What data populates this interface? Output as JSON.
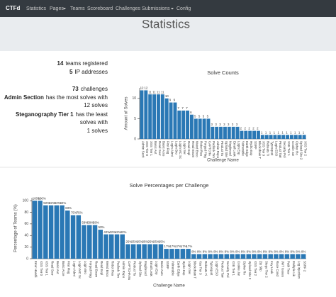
{
  "navbar": {
    "brand": "CTFd",
    "items": [
      "Statistics",
      "Pages",
      "Teams",
      "Scoreboard",
      "Challenges",
      "Submissions",
      "Config"
    ]
  },
  "header": {
    "title": "Statistics"
  },
  "stats": {
    "teams": {
      "count": "14",
      "text": "teams registered"
    },
    "ips": {
      "count": "5",
      "text": "IP addresses"
    },
    "challenges": {
      "count": "73",
      "text": "challenges"
    },
    "most": {
      "name": "Admin Section",
      "text": "has the most solves with",
      "solves": "12 solves"
    },
    "least": {
      "name": "Steganography Tier 1",
      "text": "has the least",
      "text2": "solves with",
      "solves": "1 solves"
    }
  },
  "chart_data": [
    {
      "type": "bar",
      "title": "Solve Counts",
      "x_label": "Challenge Name",
      "y_label": "Amount of Solves",
      "color": "#2a78b5",
      "categories": [
        "Admin Secti",
        "XSS Tier 0",
        "XSS Tier 1",
        "Basic Aut",
        "Read Secr",
        "Basic Acce",
        "First Flag",
        "Login Admi",
        "Login Bro",
        "Login MC Sc",
        "Login Ser",
        "Read Expl",
        "Read Enum",
        "Weird Enco",
        "Robot Rea",
        "Forged Flag",
        "CAPTCHA",
        "Padlock Tim",
        "Admin Repo",
        "Product Ta",
        "Upload Site",
        "Magibrood",
        "Email Leak",
        "Login Exp",
        "Vulnerable",
        "Earth Edge",
        "Hydro Exp",
        "SSRF",
        "Blockchain T",
        "XSS Tier 3",
        "Rebeats Ti",
        "Typosquat",
        "Login ESO",
        "Product Tarr",
        "Security Pol",
        "XXE Tier 1",
        "Cookie Jar",
        "Cipher Ro",
        "Upload Site 2",
        "XSS Tier 2"
      ],
      "values": [
        12,
        12,
        11,
        11,
        11,
        11,
        10,
        9,
        9,
        7,
        7,
        7,
        6,
        5,
        5,
        5,
        5,
        3,
        3,
        3,
        3,
        3,
        3,
        3,
        2,
        2,
        2,
        2,
        2,
        1,
        1,
        1,
        1,
        1,
        1,
        1,
        1,
        1,
        1,
        1
      ],
      "ylim": [
        0,
        12.6
      ],
      "yticks": [
        0,
        5,
        10
      ]
    },
    {
      "type": "bar",
      "title": "Solve Percentages per Challenge",
      "x_label": "Challenge Name",
      "y_label": "Percentage of Teams (%)",
      "color": "#2a78b5",
      "categories": [
        "Error Handli",
        "XSS Tier 0",
        "XSS Tier 1",
        "Read Secr",
        "Basic Aut",
        "Basic Acce",
        "First Flag",
        "Login Admi",
        "Login MC Sc",
        "Login Bro",
        "Forged Flag",
        "Read Enum",
        "Read Expl",
        "Weird Enco",
        "Robot Rea",
        "Padlock Tim",
        "Admin Repo",
        "CAPTCHA Bu",
        "Product Ta",
        "Upload Site",
        "Magibrood",
        "Email Leak",
        "Login Exp",
        "Basic Auto",
        "SSRF",
        "Vulnerable",
        "Earth Edge",
        "Hydro Exp",
        "Login Ser",
        "Blockchain T",
        "Xss Tier 3",
        "Rebeats Ti",
        "Typosquat",
        "Login ESO",
        "Product Tarr",
        "Security Pol",
        "XXE Tier 1",
        "Cookie Jar",
        "Cipher Ro",
        "Upload Site 2",
        "XSS Tier 2",
        "Zip Slip",
        "Stego Tier 2",
        "Key Leak",
        "Race Cond",
        "JWT Issues",
        "Path Trav",
        "Multiple Lik",
        "Log Injection",
        "SSRF 2"
      ],
      "values": [
        100,
        100,
        92,
        92,
        92,
        92,
        83,
        75,
        75,
        58,
        58,
        58,
        50,
        42,
        42,
        42,
        42,
        25,
        25,
        25,
        25,
        25,
        25,
        25,
        17,
        17,
        17,
        17,
        17,
        8,
        8,
        8,
        8,
        8,
        8,
        8,
        8,
        8,
        8,
        8,
        8,
        8,
        8,
        8,
        8,
        8,
        8,
        8,
        8,
        8
      ],
      "value_labels": [
        "100%",
        "100%",
        "92%",
        "92%",
        "92%",
        "92%",
        "83%",
        "75%",
        "75%",
        "58%",
        "58%",
        "58%",
        "50%",
        "42%",
        "42%",
        "42%",
        "42%",
        "25%",
        "25%",
        "25%",
        "25%",
        "25%",
        "25%",
        "25%",
        "17%",
        "17%",
        "17%",
        "17%",
        "17%",
        "8%",
        "8%",
        "8%",
        "8%",
        "8%",
        "8%",
        "8%",
        "8%",
        "8%",
        "8%",
        "8%",
        "8%",
        "8%",
        "8%",
        "8%",
        "8%",
        "8%",
        "8%",
        "8%",
        "8%",
        "8%"
      ],
      "ylim": [
        0,
        105
      ],
      "yticks": [
        0,
        20,
        40,
        60,
        80,
        100
      ]
    }
  ]
}
